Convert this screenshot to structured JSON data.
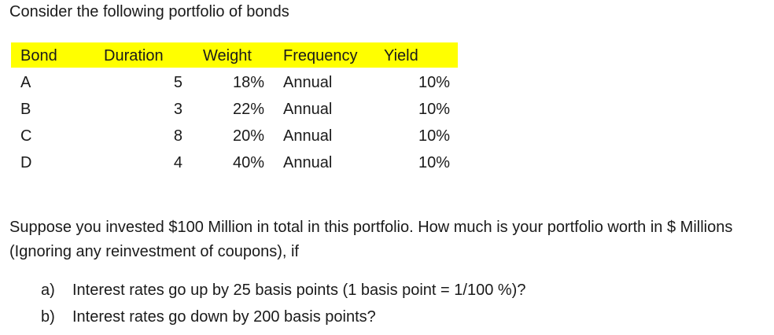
{
  "doc": {
    "title": "Consider the following portfolio of bonds",
    "table": {
      "headers": {
        "bond": "Bond",
        "duration": "Duration",
        "weight": "Weight",
        "frequency": "Frequency",
        "yield": "Yield"
      },
      "rows": [
        {
          "bond": "A",
          "duration": "5",
          "weight": "18%",
          "frequency": "Annual",
          "yield": "10%"
        },
        {
          "bond": "B",
          "duration": "3",
          "weight": "22%",
          "frequency": "Annual",
          "yield": "10%"
        },
        {
          "bond": "C",
          "duration": "8",
          "weight": "20%",
          "frequency": "Annual",
          "yield": "10%"
        },
        {
          "bond": "D",
          "duration": "4",
          "weight": "40%",
          "frequency": "Annual",
          "yield": "10%"
        }
      ],
      "header_color": "#ffff00"
    },
    "question": "Suppose you invested $100 Million in total in this portfolio. How much is your portfolio worth in $ Millions  (Ignoring any reinvestment of coupons), if",
    "items": [
      {
        "marker": "a)",
        "text": "Interest rates go up by 25 basis points (1 basis point  = 1/100 %)?"
      },
      {
        "marker": "b)",
        "text": "Interest rates go down by 200 basis points?"
      }
    ]
  }
}
